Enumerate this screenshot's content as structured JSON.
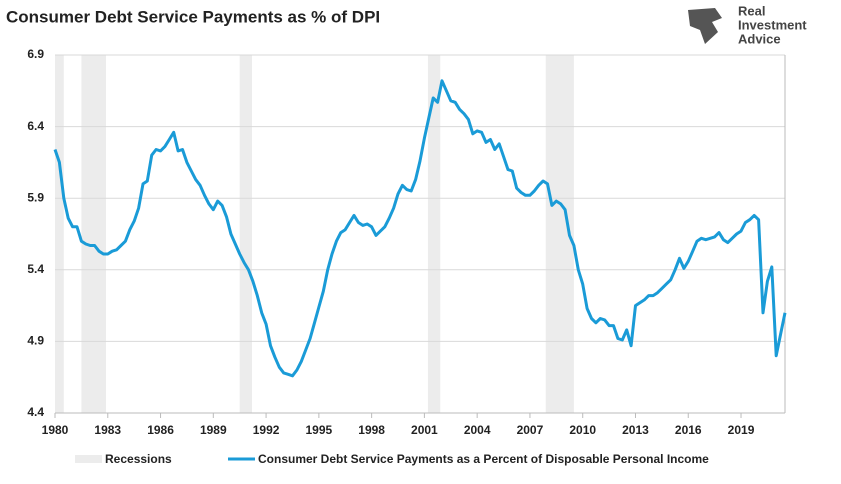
{
  "chart_data": {
    "type": "line",
    "title": "Consumer Debt Service Payments as % of DPI",
    "logo": [
      "Real",
      "Investment",
      "Advice"
    ],
    "x": [
      1980,
      1980.25,
      1980.5,
      1980.75,
      1981,
      1981.25,
      1981.5,
      1981.75,
      1982,
      1982.25,
      1982.5,
      1982.75,
      1983,
      1983.25,
      1983.5,
      1983.75,
      1984,
      1984.25,
      1984.5,
      1984.75,
      1985,
      1985.25,
      1985.5,
      1985.75,
      1986,
      1986.25,
      1986.5,
      1986.75,
      1987,
      1987.25,
      1987.5,
      1987.75,
      1988,
      1988.25,
      1988.5,
      1988.75,
      1989,
      1989.25,
      1989.5,
      1989.75,
      1990,
      1990.25,
      1990.5,
      1990.75,
      1991,
      1991.25,
      1991.5,
      1991.75,
      1992,
      1992.25,
      1992.5,
      1992.75,
      1993,
      1993.25,
      1993.5,
      1993.75,
      1994,
      1994.25,
      1994.5,
      1994.75,
      1995,
      1995.25,
      1995.5,
      1995.75,
      1996,
      1996.25,
      1996.5,
      1996.75,
      1997,
      1997.25,
      1997.5,
      1997.75,
      1998,
      1998.25,
      1998.5,
      1998.75,
      1999,
      1999.25,
      1999.5,
      1999.75,
      2000,
      2000.25,
      2000.5,
      2000.75,
      2001,
      2001.25,
      2001.5,
      2001.75,
      2002,
      2002.25,
      2002.5,
      2002.75,
      2003,
      2003.25,
      2003.5,
      2003.75,
      2004,
      2004.25,
      2004.5,
      2004.75,
      2005,
      2005.25,
      2005.5,
      2005.75,
      2006,
      2006.25,
      2006.5,
      2006.75,
      2007,
      2007.25,
      2007.5,
      2007.75,
      2008,
      2008.25,
      2008.5,
      2008.75,
      2009,
      2009.25,
      2009.5,
      2009.75,
      2010,
      2010.25,
      2010.5,
      2010.75,
      2011,
      2011.25,
      2011.5,
      2011.75,
      2012,
      2012.25,
      2012.5,
      2012.75,
      2013,
      2013.25,
      2013.5,
      2013.75,
      2014,
      2014.25,
      2014.5,
      2014.75,
      2015,
      2015.25,
      2015.5,
      2015.75,
      2016,
      2016.25,
      2016.5,
      2016.75,
      2017,
      2017.25,
      2017.5,
      2017.75,
      2018,
      2018.25,
      2018.5,
      2018.75,
      2019,
      2019.25,
      2019.5,
      2019.75,
      2020,
      2020.25,
      2020.5,
      2020.75,
      2021,
      2021.25,
      2021.5
    ],
    "series": [
      {
        "name": "Consumer Debt Service Payments as a Percent of Disposable Personal Income",
        "color": "#1a9bd7",
        "values": [
          6.24,
          6.15,
          5.9,
          5.76,
          5.7,
          5.7,
          5.6,
          5.58,
          5.57,
          5.57,
          5.53,
          5.51,
          5.51,
          5.53,
          5.54,
          5.57,
          5.6,
          5.68,
          5.74,
          5.83,
          6.0,
          6.02,
          6.2,
          6.24,
          6.23,
          6.26,
          6.31,
          6.36,
          6.23,
          6.24,
          6.15,
          6.09,
          6.03,
          5.99,
          5.92,
          5.86,
          5.82,
          5.88,
          5.85,
          5.77,
          5.65,
          5.58,
          5.51,
          5.45,
          5.4,
          5.32,
          5.22,
          5.1,
          5.02,
          4.87,
          4.79,
          4.72,
          4.68,
          4.67,
          4.66,
          4.7,
          4.76,
          4.84,
          4.92,
          5.03,
          5.14,
          5.25,
          5.4,
          5.51,
          5.6,
          5.66,
          5.68,
          5.73,
          5.78,
          5.73,
          5.71,
          5.72,
          5.7,
          5.64,
          5.67,
          5.7,
          5.76,
          5.83,
          5.93,
          5.99,
          5.96,
          5.95,
          6.03,
          6.16,
          6.32,
          6.46,
          6.6,
          6.57,
          6.72,
          6.65,
          6.58,
          6.57,
          6.52,
          6.49,
          6.45,
          6.35,
          6.37,
          6.36,
          6.29,
          6.31,
          6.24,
          6.28,
          6.19,
          6.1,
          6.09,
          5.97,
          5.94,
          5.92,
          5.92,
          5.95,
          5.99,
          6.02,
          6.0,
          5.85,
          5.88,
          5.86,
          5.82,
          5.64,
          5.57,
          5.4,
          5.3,
          5.13,
          5.06,
          5.03,
          5.06,
          5.05,
          5.01,
          5.01,
          4.92,
          4.91,
          4.98,
          4.87,
          5.15,
          5.17,
          5.19,
          5.22,
          5.22,
          5.24,
          5.27,
          5.3,
          5.33,
          5.4,
          5.48,
          5.41,
          5.46,
          5.53,
          5.6,
          5.62,
          5.61,
          5.62,
          5.63,
          5.66,
          5.61,
          5.59,
          5.62,
          5.65,
          5.67,
          5.73,
          5.75,
          5.78,
          5.75,
          5.1,
          5.32,
          5.42,
          4.8,
          4.95,
          5.1
        ]
      }
    ],
    "recessions_name": "Recessions",
    "recession_color": "#ececec",
    "recessions": [
      [
        1980,
        1980.5
      ],
      [
        1981.5,
        1982.9
      ],
      [
        1990.5,
        1991.2
      ],
      [
        2001.2,
        2001.9
      ],
      [
        2007.9,
        2009.5
      ]
    ],
    "xlim": [
      1980,
      2021.5
    ],
    "xticks": [
      1980,
      1983,
      1986,
      1989,
      1992,
      1995,
      1998,
      2001,
      2004,
      2007,
      2010,
      2013,
      2016,
      2019
    ],
    "ylim": [
      4.4,
      6.9
    ],
    "yticks": [
      4.4,
      4.9,
      5.4,
      5.9,
      6.4,
      6.9
    ],
    "grid": true
  }
}
